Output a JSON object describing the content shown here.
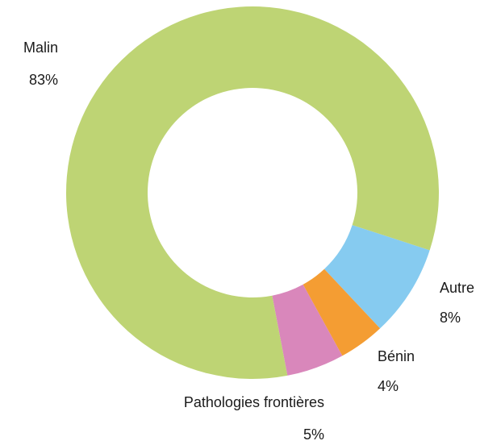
{
  "chart_data": {
    "type": "donut",
    "categories": [
      "Malin",
      "Autre",
      "Bénin",
      "Pathologies frontières"
    ],
    "values": [
      83,
      8,
      4,
      5
    ],
    "value_labels": [
      "83%",
      "8%",
      "4%",
      "5%"
    ],
    "colors": [
      "#bed474",
      "#86cbf0",
      "#f49d33",
      "#d987bb"
    ]
  }
}
